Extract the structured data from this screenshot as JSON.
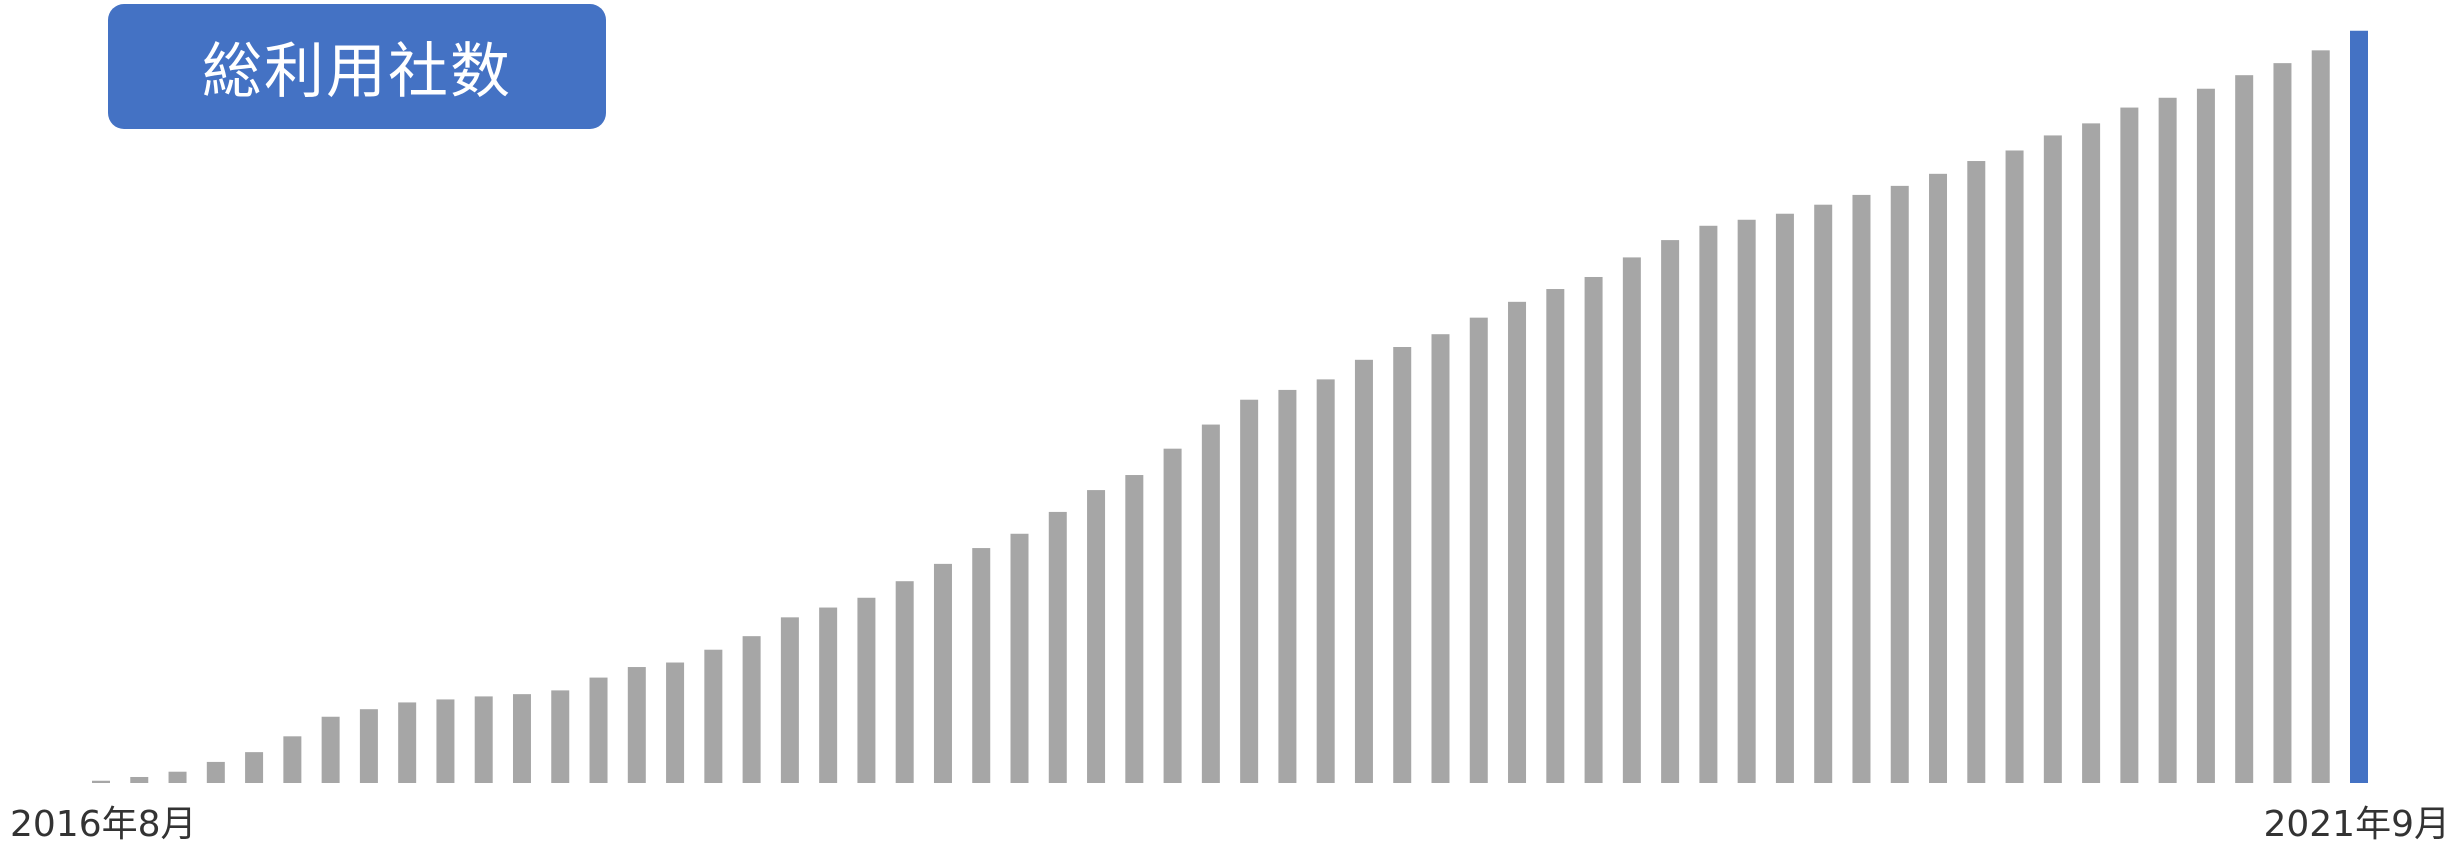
{
  "title": "総利用社数",
  "colors": {
    "bar": "#a6a6a6",
    "highlight": "#4472c4",
    "badge": "#4472c4",
    "badge_text": "#ffffff",
    "label": "#333333"
  },
  "chart_data": {
    "type": "bar",
    "title": "総利用社数",
    "xlabel": "",
    "ylabel": "",
    "ylim": [
      0,
      100
    ],
    "grid": false,
    "legend": "none",
    "start_label": "2016年8月",
    "end_label": "2021年9月",
    "x_tick_labels": [
      "2016年8月",
      "2021年9月"
    ],
    "highlight_last": true,
    "values": [
      0.3,
      0.8,
      1.5,
      2.8,
      4.1,
      6.2,
      8.8,
      9.8,
      10.7,
      11.1,
      11.5,
      11.8,
      12.3,
      14.0,
      15.4,
      16.0,
      17.7,
      19.5,
      22.0,
      23.3,
      24.6,
      26.8,
      29.1,
      31.2,
      33.1,
      36.0,
      38.9,
      40.9,
      44.4,
      47.6,
      50.9,
      52.2,
      53.6,
      56.2,
      57.9,
      59.6,
      61.8,
      63.9,
      65.6,
      67.2,
      69.8,
      72.1,
      74.0,
      74.8,
      75.6,
      76.8,
      78.1,
      79.3,
      80.9,
      82.6,
      84.0,
      86.0,
      87.6,
      89.7,
      91.0,
      92.2,
      94.0,
      95.6,
      97.3,
      99.9
    ]
  }
}
